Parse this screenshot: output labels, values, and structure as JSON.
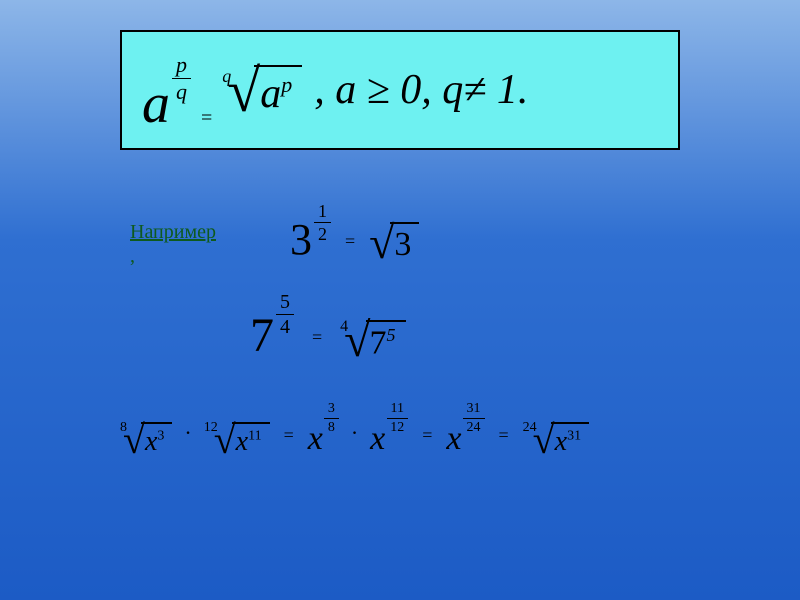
{
  "colors": {
    "bg_top": "#8db6e8",
    "bg_mid": "#2f6fd1",
    "bg_bottom": "#1c5bc5",
    "box_fill": "#6ef1f1",
    "box_border": "#000000",
    "text": "#000000",
    "label": "#0e5a1e"
  },
  "formula_box": {
    "lhs_base": "a",
    "lhs_exp_num": "p",
    "lhs_exp_den": "q",
    "eq": "=",
    "root_index": "q",
    "root_radicand_base": "a",
    "root_radicand_exp": "p",
    "condition": ", a ≥ 0, q≠ 1."
  },
  "example_label": {
    "text": "Например",
    "comma": ","
  },
  "ex1": {
    "base": "3",
    "exp_num": "1",
    "exp_den": "2",
    "eq": "=",
    "radicand": "3"
  },
  "ex2": {
    "base": "7",
    "exp_num": "5",
    "exp_den": "4",
    "eq": "=",
    "root_index": "4",
    "radicand_base": "7",
    "radicand_exp": "5"
  },
  "ex3": {
    "r1_index": "8",
    "r1_base": "x",
    "r1_exp": "3",
    "dot": "·",
    "r2_index": "12",
    "r2_base": "x",
    "r2_exp": "11",
    "eq": "=",
    "p1_base": "x",
    "p1_num": "3",
    "p1_den": "8",
    "p2_base": "x",
    "p2_num": "11",
    "p2_den": "12",
    "p3_base": "x",
    "p3_num": "31",
    "p3_den": "24",
    "rf_index": "24",
    "rf_base": "x",
    "rf_exp": "31"
  }
}
